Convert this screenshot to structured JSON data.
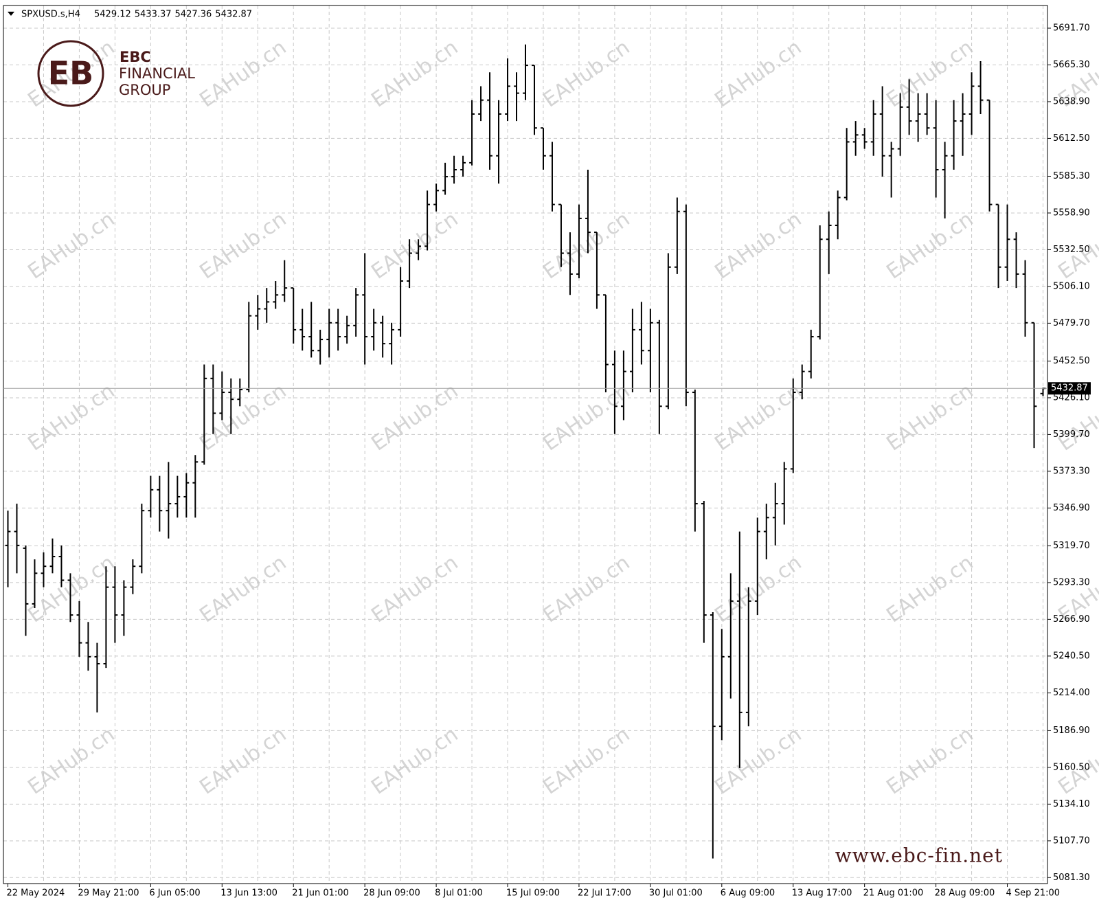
{
  "chart_data": {
    "type": "ohlc",
    "title": "SPXUSD.s,H4",
    "brand": [
      "EBC",
      "FINANCIAL",
      "GROUP"
    ],
    "website": "www.ebc-fin.net",
    "watermark": "EAHub.cn",
    "categories": [
      "22 May 2024",
      null,
      null,
      null,
      null,
      null,
      null,
      null,
      "29 May 21:00",
      null,
      null,
      null,
      null,
      null,
      null,
      null,
      "6 Jun 05:00",
      null,
      null,
      null,
      null,
      null,
      null,
      null,
      "13 Jun 13:00",
      null,
      null,
      null,
      null,
      null,
      null,
      null,
      "21 Jun 01:00",
      null,
      null,
      null,
      null,
      null,
      null,
      null,
      "28 Jun 09:00",
      null,
      null,
      null,
      null,
      null,
      null,
      null,
      "8 Jul 01:00",
      null,
      null,
      null,
      null,
      null,
      null,
      null,
      "15 Jul 09:00",
      null,
      null,
      null,
      null,
      null,
      null,
      null,
      "22 Jul 17:00",
      null,
      null,
      null,
      null,
      null,
      null,
      null,
      "30 Jul 01:00",
      null,
      null,
      null,
      null,
      null,
      null,
      null,
      "6 Aug 09:00",
      null,
      null,
      null,
      null,
      null,
      null,
      null,
      "13 Aug 17:00",
      null,
      null,
      null,
      null,
      null,
      null,
      null,
      "21 Aug 01:00",
      null,
      null,
      null,
      null,
      null,
      null,
      null,
      "28 Aug 09:00",
      null,
      null,
      null,
      null,
      null,
      null,
      null,
      "4 Sep 21:00",
      null,
      null,
      null,
      null
    ],
    "open": [
      5320,
      5330,
      5318,
      5278,
      5300,
      5305,
      5312,
      5295,
      5270,
      5250,
      5240,
      5235,
      5290,
      5270,
      5290,
      5305,
      5345,
      5360,
      5345,
      5350,
      5355,
      5365,
      5380,
      5440,
      5415,
      5430,
      5425,
      5432,
      5485,
      5490,
      5495,
      5500,
      5505,
      5475,
      5470,
      5460,
      5468,
      5480,
      5470,
      5478,
      5500,
      5470,
      5480,
      5465,
      5475,
      5510,
      5530,
      5535,
      5565,
      5575,
      5585,
      5590,
      5595,
      5630,
      5640,
      5600,
      5630,
      5650,
      5645,
      5665,
      5620,
      5600,
      5565,
      5530,
      5515,
      5555,
      5545,
      5500,
      5450,
      5420,
      5445,
      5475,
      5460,
      5480,
      5420,
      5520,
      5560,
      5430,
      5350,
      5270,
      5190,
      5240,
      5280,
      5200,
      5280,
      5330,
      5340,
      5350,
      5375,
      5430,
      5445,
      5470,
      5540,
      5550,
      5570,
      5610,
      5615,
      5610,
      5630,
      5600,
      5605,
      5635,
      5625,
      5630,
      5620,
      5590,
      5600,
      5625,
      5630,
      5650,
      5640,
      5565,
      5520,
      5540,
      5515,
      5480,
      5429.12
    ],
    "high": [
      5345,
      5350,
      5320,
      5310,
      5315,
      5325,
      5320,
      5300,
      5280,
      5265,
      5250,
      5305,
      5305,
      5295,
      5310,
      5350,
      5370,
      5370,
      5380,
      5370,
      5372,
      5385,
      5450,
      5450,
      5445,
      5440,
      5440,
      5495,
      5500,
      5505,
      5510,
      5525,
      5505,
      5490,
      5495,
      5475,
      5490,
      5490,
      5485,
      5505,
      5530,
      5490,
      5485,
      5480,
      5520,
      5540,
      5540,
      5575,
      5580,
      5595,
      5600,
      5600,
      5640,
      5650,
      5660,
      5640,
      5670,
      5660,
      5680,
      5665,
      5620,
      5610,
      5565,
      5545,
      5565,
      5590,
      5545,
      5500,
      5460,
      5460,
      5490,
      5495,
      5490,
      5482,
      5530,
      5570,
      5565,
      5432,
      5352,
      5272,
      5260,
      5300,
      5330,
      5290,
      5340,
      5350,
      5365,
      5380,
      5440,
      5450,
      5475,
      5550,
      5560,
      5575,
      5620,
      5625,
      5620,
      5640,
      5650,
      5610,
      5645,
      5655,
      5645,
      5645,
      5640,
      5610,
      5640,
      5645,
      5660,
      5668,
      5640,
      5565,
      5565,
      5545,
      5525,
      5480,
      5433.37
    ],
    "low": [
      5290,
      5300,
      5255,
      5275,
      5290,
      5300,
      5290,
      5265,
      5240,
      5230,
      5200,
      5232,
      5250,
      5255,
      5285,
      5300,
      5340,
      5330,
      5325,
      5340,
      5340,
      5340,
      5378,
      5400,
      5410,
      5400,
      5420,
      5430,
      5475,
      5480,
      5490,
      5495,
      5465,
      5460,
      5455,
      5450,
      5455,
      5460,
      5465,
      5470,
      5450,
      5460,
      5455,
      5450,
      5470,
      5505,
      5525,
      5532,
      5560,
      5572,
      5580,
      5585,
      5593,
      5625,
      5590,
      5580,
      5625,
      5625,
      5640,
      5615,
      5590,
      5560,
      5520,
      5500,
      5512,
      5530,
      5490,
      5430,
      5400,
      5410,
      5430,
      5450,
      5430,
      5400,
      5418,
      5515,
      5420,
      5330,
      5250,
      5095,
      5180,
      5210,
      5160,
      5190,
      5270,
      5310,
      5320,
      5335,
      5372,
      5425,
      5440,
      5468,
      5515,
      5540,
      5568,
      5600,
      5605,
      5600,
      5585,
      5570,
      5600,
      5615,
      5610,
      5615,
      5570,
      5555,
      5590,
      5600,
      5615,
      5630,
      5560,
      5505,
      5510,
      5505,
      5470,
      5390,
      5427.36
    ],
    "close": [
      5330,
      5320,
      5278,
      5300,
      5305,
      5312,
      5295,
      5270,
      5250,
      5240,
      5235,
      5290,
      5270,
      5290,
      5305,
      5345,
      5360,
      5345,
      5350,
      5355,
      5365,
      5380,
      5440,
      5415,
      5430,
      5425,
      5432,
      5485,
      5490,
      5495,
      5500,
      5505,
      5475,
      5470,
      5460,
      5468,
      5480,
      5470,
      5478,
      5500,
      5470,
      5480,
      5465,
      5475,
      5510,
      5530,
      5535,
      5565,
      5575,
      5585,
      5590,
      5595,
      5630,
      5640,
      5600,
      5630,
      5650,
      5645,
      5665,
      5620,
      5600,
      5565,
      5530,
      5515,
      5555,
      5545,
      5500,
      5450,
      5420,
      5445,
      5475,
      5460,
      5480,
      5420,
      5520,
      5560,
      5430,
      5350,
      5270,
      5190,
      5240,
      5280,
      5200,
      5280,
      5330,
      5340,
      5350,
      5375,
      5430,
      5445,
      5470,
      5540,
      5550,
      5570,
      5610,
      5615,
      5610,
      5630,
      5600,
      5605,
      5635,
      5625,
      5630,
      5620,
      5590,
      5600,
      5625,
      5630,
      5650,
      5640,
      5565,
      5520,
      5540,
      5515,
      5480,
      5420,
      5432.87
    ],
    "color": "#000000",
    "ylim": [
      5077,
      5708
    ],
    "yticks": [
      {
        "value": 5081.3,
        "label": "5081.30"
      },
      {
        "value": 5107.7,
        "label": "5107.70"
      },
      {
        "value": 5134.1,
        "label": "5134.10"
      },
      {
        "value": 5160.5,
        "label": "5160.50"
      },
      {
        "value": 5186.9,
        "label": "5186.90"
      },
      {
        "value": 5214,
        "label": "5214.00"
      },
      {
        "value": 5240.5,
        "label": "5240.50"
      },
      {
        "value": 5266.9,
        "label": "5266.90"
      },
      {
        "value": 5293.3,
        "label": "5293.30"
      },
      {
        "value": 5319.7,
        "label": "5319.70"
      },
      {
        "value": 5346.9,
        "label": "5346.90"
      },
      {
        "value": 5373.3,
        "label": "5373.30"
      },
      {
        "value": 5399.7,
        "label": "5399.70"
      },
      {
        "value": 5426.1,
        "label": "5426.10"
      },
      {
        "value": 5452.5,
        "label": "5452.50"
      },
      {
        "value": 5479.7,
        "label": "5479.70"
      },
      {
        "value": 5506.1,
        "label": "5506.10"
      },
      {
        "value": 5532.5,
        "label": "5532.50"
      },
      {
        "value": 5558.9,
        "label": "5558.90"
      },
      {
        "value": 5585.3,
        "label": "5585.30"
      },
      {
        "value": 5612.5,
        "label": "5612.50"
      },
      {
        "value": 5638.9,
        "label": "5638.90"
      },
      {
        "value": 5665.3,
        "label": "5665.30"
      },
      {
        "value": 5691.7,
        "label": "5691.70"
      }
    ],
    "grid": true
  }
}
